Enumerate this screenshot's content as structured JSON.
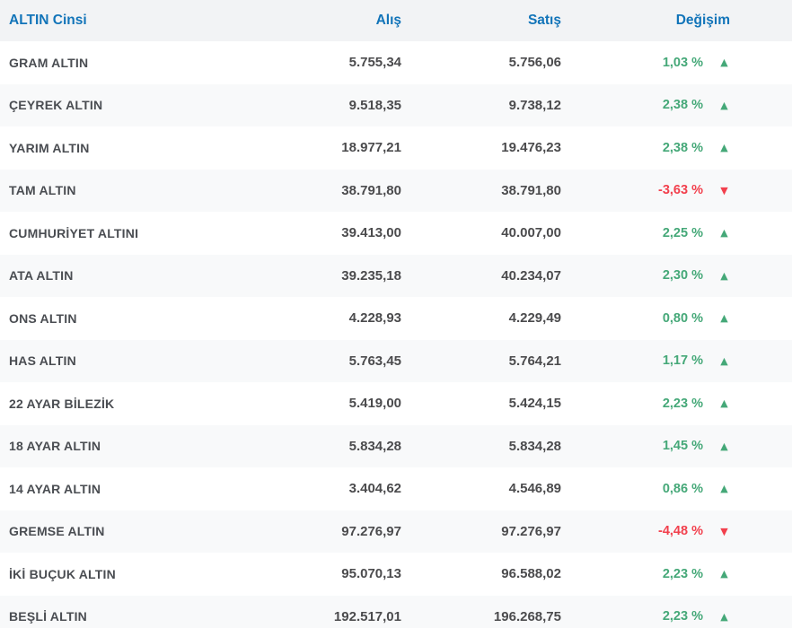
{
  "colors": {
    "header_text": "#1274b9",
    "header_bg": "#f2f3f5",
    "row_alt_bg": "#f8f9fa",
    "text": "#4a4d52",
    "up": "#45a878",
    "down": "#f2404d"
  },
  "chart_data": {
    "type": "table",
    "columns": [
      "ALTIN Cinsi",
      "Alış",
      "Satış",
      "Değişim"
    ],
    "rows": [
      {
        "name": "GRAM ALTIN",
        "buy": "5.755,34",
        "sell": "5.756,06",
        "change": "1,03 %",
        "direction": "up"
      },
      {
        "name": "ÇEYREK ALTIN",
        "buy": "9.518,35",
        "sell": "9.738,12",
        "change": "2,38 %",
        "direction": "up"
      },
      {
        "name": "YARIM ALTIN",
        "buy": "18.977,21",
        "sell": "19.476,23",
        "change": "2,38 %",
        "direction": "up"
      },
      {
        "name": "TAM ALTIN",
        "buy": "38.791,80",
        "sell": "38.791,80",
        "change": "-3,63 %",
        "direction": "down"
      },
      {
        "name": "CUMHURİYET ALTINI",
        "buy": "39.413,00",
        "sell": "40.007,00",
        "change": "2,25 %",
        "direction": "up"
      },
      {
        "name": "ATA ALTIN",
        "buy": "39.235,18",
        "sell": "40.234,07",
        "change": "2,30 %",
        "direction": "up"
      },
      {
        "name": "ONS ALTIN",
        "buy": "4.228,93",
        "sell": "4.229,49",
        "change": "0,80 %",
        "direction": "up"
      },
      {
        "name": "HAS ALTIN",
        "buy": "5.763,45",
        "sell": "5.764,21",
        "change": "1,17 %",
        "direction": "up"
      },
      {
        "name": "22 AYAR BİLEZİK",
        "buy": "5.419,00",
        "sell": "5.424,15",
        "change": "2,23 %",
        "direction": "up"
      },
      {
        "name": "18 AYAR ALTIN",
        "buy": "5.834,28",
        "sell": "5.834,28",
        "change": "1,45 %",
        "direction": "up"
      },
      {
        "name": "14 AYAR ALTIN",
        "buy": "3.404,62",
        "sell": "4.546,89",
        "change": "0,86 %",
        "direction": "up"
      },
      {
        "name": "GREMSE ALTIN",
        "buy": "97.276,97",
        "sell": "97.276,97",
        "change": "-4,48 %",
        "direction": "down"
      },
      {
        "name": "İKİ BUÇUK ALTIN",
        "buy": "95.070,13",
        "sell": "96.588,02",
        "change": "2,23 %",
        "direction": "up"
      },
      {
        "name": "BEŞLİ ALTIN",
        "buy": "192.517,01",
        "sell": "196.268,75",
        "change": "2,23 %",
        "direction": "up"
      }
    ]
  }
}
